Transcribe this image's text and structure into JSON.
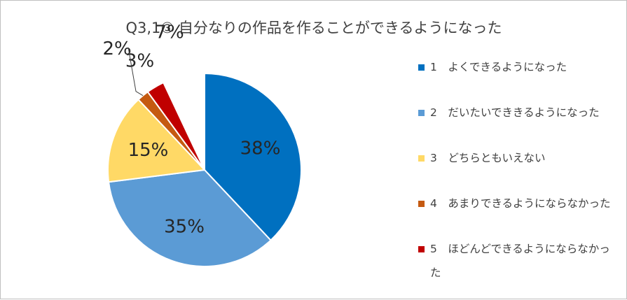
{
  "chart_data": {
    "type": "pie",
    "title": "Q3,1③ 自分なりの作品を作ることができるようになった",
    "categories": [
      "1　よくできるようになった",
      "2　だいたいでききるようになった",
      "3　どちらともいえない",
      "4　あまりできるようにならなかった",
      "5　ほどんどできるようにならなかった"
    ],
    "values": [
      38,
      35,
      15,
      2,
      3
    ],
    "value_labels": [
      "38%",
      "35%",
      "15%",
      "2%",
      "3%"
    ],
    "unlabeled_remainder_label": "7%",
    "colors": [
      "#0070c0",
      "#5b9bd5",
      "#ffd966",
      "#c55a11",
      "#c00000"
    ],
    "legend_position": "right"
  }
}
